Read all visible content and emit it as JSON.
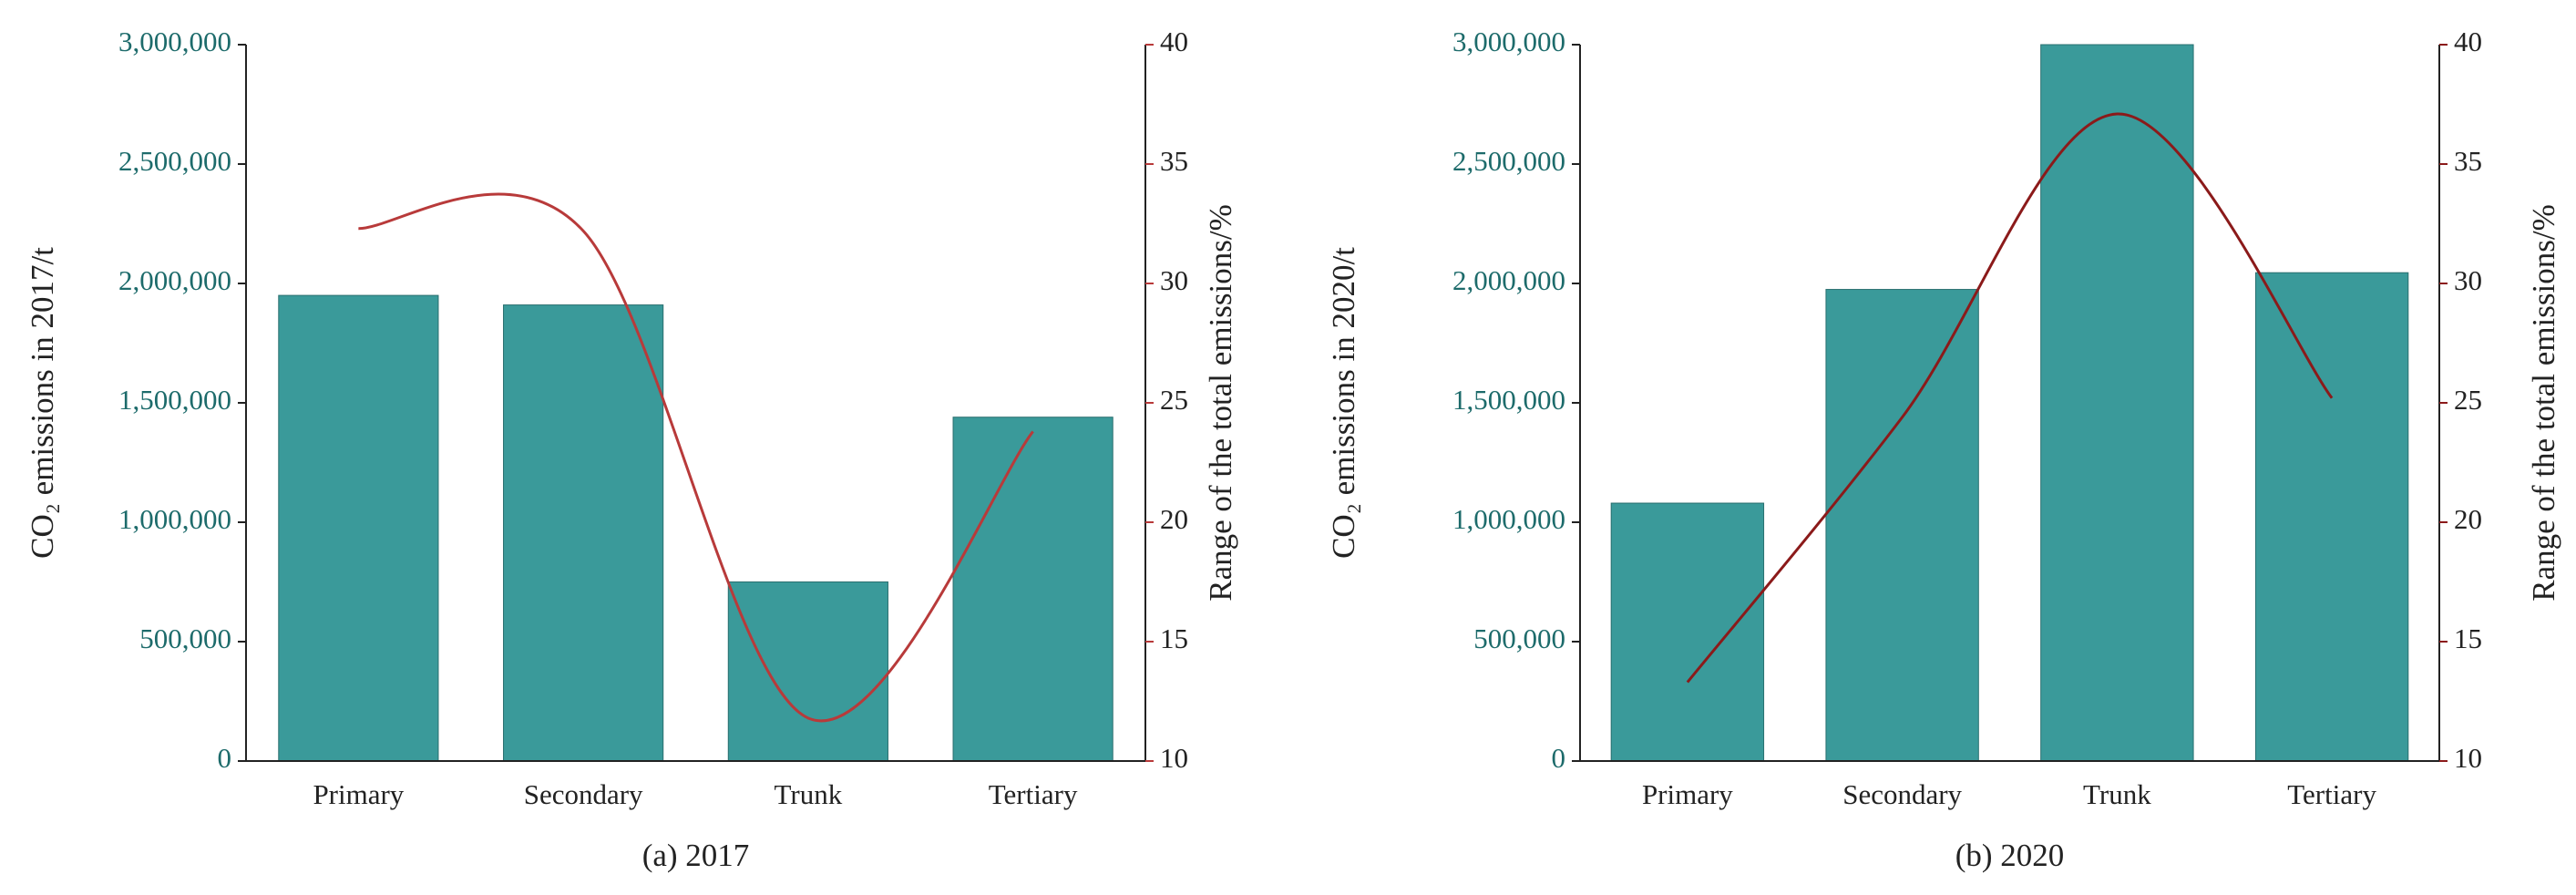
{
  "chart_data": [
    {
      "type": "bar",
      "subtitle": "(a) 2017",
      "categories": [
        "Primary",
        "Secondary",
        "Trunk",
        "Tertiary"
      ],
      "y_label": "CO₂ emissions in 2017/t",
      "y2_label": "Range of the total emissions/%",
      "series": [
        {
          "type": "bar",
          "color": "#3a9a9a",
          "values": [
            1950000,
            1910000,
            750000,
            1440000
          ]
        },
        {
          "type": "line",
          "axis": "y2",
          "color": "#b83a3a",
          "values": [
            32.3,
            32.2,
            11.8,
            23.8
          ]
        }
      ],
      "ylim": [
        0,
        3000000
      ],
      "yticks": [
        0,
        {
          "value": 500000,
          "label": "500,000"
        },
        {
          "value": 1000000,
          "label": "1,000,000"
        },
        {
          "value": 1500000,
          "label": "1,500,000"
        },
        {
          "value": 2000000,
          "label": "2,000,000"
        },
        {
          "value": 2500000,
          "label": "2,500,000"
        },
        {
          "value": 3000000,
          "label": "3,000,000"
        }
      ],
      "y2lim": [
        10,
        40
      ],
      "y2ticks": [
        10,
        15,
        20,
        25,
        30,
        35,
        40
      ]
    },
    {
      "type": "bar",
      "subtitle": "(b) 2020",
      "categories": [
        "Primary",
        "Secondary",
        "Trunk",
        "Tertiary"
      ],
      "y_label": "CO₂ emissions in 2020/t",
      "y2_label": "Range of the total emissions/%",
      "series": [
        {
          "type": "bar",
          "color": "#3a9a9a",
          "values": [
            1080000,
            1975000,
            3000000,
            2045000
          ]
        },
        {
          "type": "line",
          "axis": "y2",
          "color": "#8b1a1a",
          "values": [
            13.3,
            24.4,
            37.1,
            25.2
          ]
        }
      ],
      "ylim": [
        0,
        3000000
      ],
      "yticks": [
        0,
        {
          "value": 500000,
          "label": "500,000"
        },
        {
          "value": 1000000,
          "label": "1,000,000"
        },
        {
          "value": 1500000,
          "label": "1,500,000"
        },
        {
          "value": 2000000,
          "label": "2,000,000"
        },
        {
          "value": 2500000,
          "label": "2,500,000"
        },
        {
          "value": 3000000,
          "label": "3,000,000"
        }
      ],
      "y2lim": [
        10,
        40
      ],
      "y2ticks": [
        10,
        15,
        20,
        25,
        30,
        35,
        40
      ]
    }
  ]
}
